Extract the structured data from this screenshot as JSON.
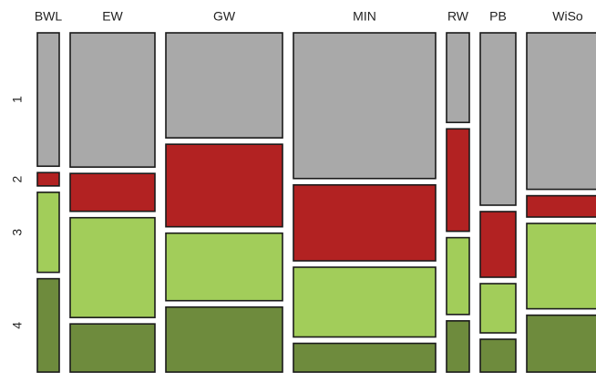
{
  "chart_data": {
    "type": "mosaic",
    "categories": [
      "BWL",
      "EW",
      "GW",
      "MIN",
      "RW",
      "PB",
      "WiSo"
    ],
    "series": [
      {
        "name": "1",
        "color": "#a9a9a9",
        "values": [
          10,
          39,
          42,
          71,
          7,
          21,
          44
        ]
      },
      {
        "name": "2",
        "color": "#b22222",
        "values": [
          1,
          11,
          33,
          37,
          8,
          8,
          6
        ]
      },
      {
        "name": "3",
        "color": "#a2cd5a",
        "values": [
          6,
          29,
          27,
          34,
          6,
          6,
          24
        ]
      },
      {
        "name": "4",
        "color": "#6e8b3d",
        "values": [
          7,
          14,
          26,
          14,
          4,
          4,
          16
        ]
      }
    ]
  }
}
